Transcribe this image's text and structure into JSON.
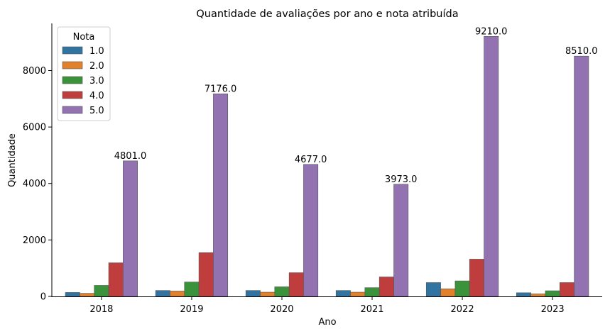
{
  "chart_data": {
    "type": "bar",
    "title": "Quantidade de avaliações por ano e nota atribuída",
    "xlabel": "Ano",
    "ylabel": "Quantidade",
    "categories": [
      "2018",
      "2019",
      "2020",
      "2021",
      "2022",
      "2023"
    ],
    "ylim": [
      0,
      9670
    ],
    "yticks": [
      0,
      2000,
      4000,
      6000,
      8000
    ],
    "series": [
      {
        "name": "1.0",
        "color": "#3274a1",
        "values": [
          140,
          210,
          210,
          210,
          490,
          130
        ]
      },
      {
        "name": "2.0",
        "color": "#e1812c",
        "values": [
          110,
          190,
          150,
          150,
          270,
          90
        ]
      },
      {
        "name": "3.0",
        "color": "#3a923a",
        "values": [
          390,
          510,
          340,
          310,
          550,
          200
        ]
      },
      {
        "name": "4.0",
        "color": "#c03d3e",
        "values": [
          1190,
          1550,
          840,
          690,
          1320,
          490
        ]
      },
      {
        "name": "5.0",
        "color": "#9372b2",
        "values": [
          4801,
          7176,
          4677,
          3973,
          9210,
          8510
        ]
      }
    ],
    "data_labels": [
      "4801.0",
      "7176.0",
      "4677.0",
      "3973.0",
      "9210.0",
      "8510.0"
    ],
    "legend": {
      "title": "Nota",
      "position": "top-left"
    }
  }
}
